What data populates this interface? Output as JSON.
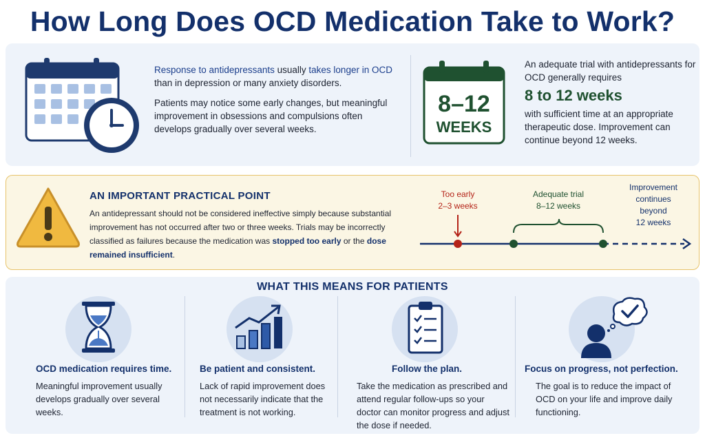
{
  "title": "How Long Does OCD Medication Take to Work?",
  "top_left": {
    "line1_part1": "Response to antidepressants",
    "line1_part2": " usually ",
    "line1_part3": "takes longer in OCD",
    "line1_part4": " than in depression or many anxiety disorders.",
    "para2": "Patients may notice some early changes, but meaningful improvement in obsessions and compulsions often develops gradually over several weeks."
  },
  "top_right": {
    "icon_line1": "8–12",
    "icon_line2": "WEEKS",
    "intro": "An adequate trial with antidepressants for OCD generally requires",
    "highlight": "8 to 12 weeks",
    "outro": "with sufficient time at an appropriate therapeutic dose. Improvement can continue beyond 12 weeks."
  },
  "warning": {
    "title": "AN IMPORTANT PRACTICAL POINT",
    "text_part1": "An antidepressant should not be considered ineffective simply because substantial improvement has not occurred after two or three weeks. Trials may be incorrectly classified as failures because the medication was ",
    "text_bold1": "stopped too early",
    "text_part2": " or the ",
    "text_bold2": "dose remained insufficient",
    "text_part3": "."
  },
  "timeline": {
    "too_early_1": "Too early",
    "too_early_2": "2–3 weeks",
    "adequate_1": "Adequate trial",
    "adequate_2": "8–12 weeks",
    "continues_1": "Improvement",
    "continues_2": "continues",
    "continues_3": "beyond",
    "continues_4": "12 weeks"
  },
  "section_title": "WHAT THIS MEANS FOR PATIENTS",
  "columns": [
    {
      "icon": "hourglass-icon",
      "heading": "OCD medication requires time.",
      "body": "Meaningful improvement usually develops gradually over several weeks."
    },
    {
      "icon": "growth-chart-icon",
      "heading": "Be patient and consistent.",
      "body": "Lack of rapid improvement does not necessarily indicate that the treatment is not working."
    },
    {
      "icon": "clipboard-checklist-icon",
      "heading": "Follow the plan.",
      "body": "Take the medication as prescribed and attend regular follow-ups so your doctor can monitor progress and adjust the dose if needed."
    },
    {
      "icon": "person-thought-check-icon",
      "heading": "Focus on progress, not perfection.",
      "body": "The goal is to reduce the impact of OCD on your life and improve daily functioning."
    }
  ],
  "colors": {
    "navy": "#13306b",
    "green": "#1f5130",
    "red": "#b42318",
    "warning": "#f0b940",
    "panel": "#eef3fa"
  }
}
